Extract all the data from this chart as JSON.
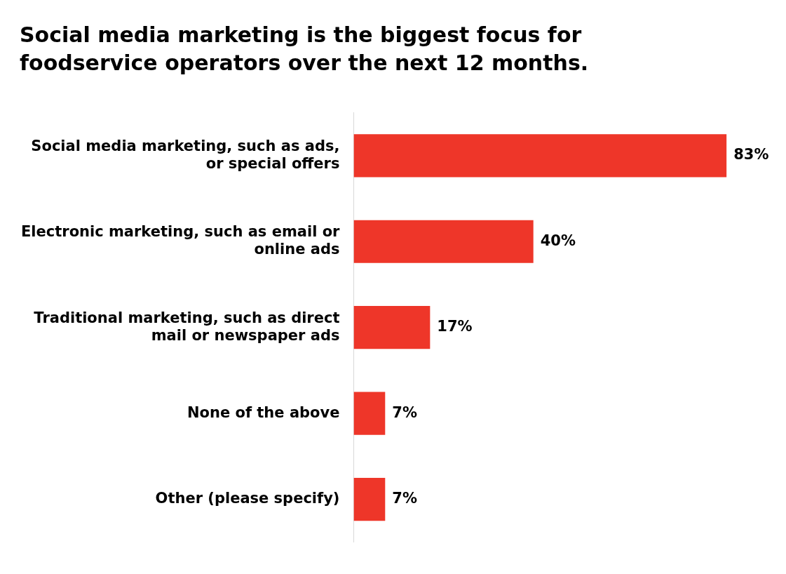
{
  "chart_data": {
    "type": "bar",
    "orientation": "horizontal",
    "title": "Social media marketing is the biggest focus for foodservice operators over the next 12 months.",
    "categories": [
      "Social media marketing, such as ads, or special offers",
      "Electronic marketing, such as email or online ads",
      "Traditional marketing, such as direct mail or newspaper ads",
      "None of the above",
      "Other (please specify)"
    ],
    "values": [
      83,
      40,
      17,
      7,
      7
    ],
    "value_labels": [
      "83%",
      "40%",
      "17%",
      "7%",
      "7%"
    ],
    "color": "#ee3629",
    "grid": false,
    "legend": false
  }
}
